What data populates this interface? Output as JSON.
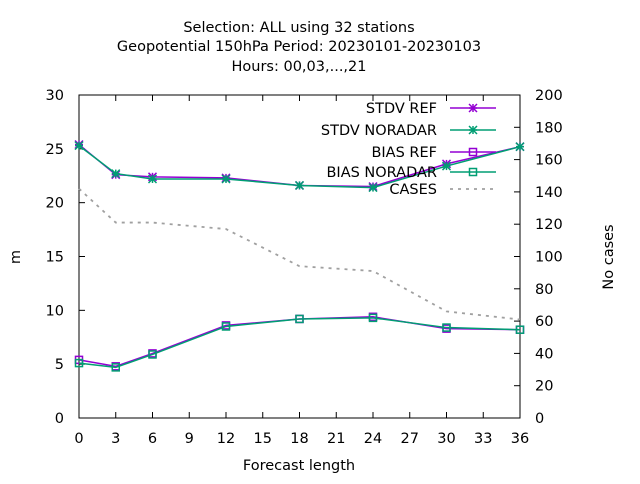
{
  "colors": {
    "stdv_ref": "#9400d3",
    "stdv_noradar": "#009e73",
    "bias_ref": "#9400d3",
    "bias_noradar": "#009e73",
    "cases": "#a0a0a0"
  },
  "chart_data": {
    "type": "line",
    "title": [
      "Selection: ALL using    32 stations",
      "Geopotential 150hPa   Period: 20230101-20230103",
      "Hours:  00,03,...,21"
    ],
    "xlabel": "Forecast length",
    "ylabel": "m",
    "y2label": "No cases",
    "xlim": [
      0,
      36
    ],
    "ylim": [
      0,
      30
    ],
    "y2lim": [
      0,
      200
    ],
    "xticks": [
      0,
      3,
      6,
      9,
      12,
      15,
      18,
      21,
      24,
      27,
      30,
      33,
      36
    ],
    "yticks": [
      0,
      5,
      10,
      15,
      20,
      25,
      30
    ],
    "y2ticks": [
      0,
      20,
      40,
      60,
      80,
      100,
      120,
      140,
      160,
      180,
      200
    ],
    "grid": false,
    "legend_position": "top-right",
    "x": [
      0,
      3,
      6,
      12,
      18,
      24,
      30,
      36
    ],
    "series": [
      {
        "name": "STDV REF",
        "axis": "y",
        "marker": "star",
        "values": [
          25.4,
          22.6,
          22.4,
          22.3,
          21.6,
          21.5,
          23.6,
          25.2
        ]
      },
      {
        "name": "STDV NORADAR",
        "axis": "y",
        "marker": "star",
        "values": [
          25.3,
          22.7,
          22.2,
          22.2,
          21.6,
          21.4,
          23.4,
          25.2
        ]
      },
      {
        "name": "BIAS REF",
        "axis": "y",
        "marker": "square",
        "values": [
          5.4,
          4.8,
          6.0,
          8.6,
          9.2,
          9.4,
          8.3,
          8.2
        ]
      },
      {
        "name": "BIAS NORADAR",
        "axis": "y",
        "marker": "square",
        "values": [
          5.1,
          4.7,
          5.9,
          8.5,
          9.2,
          9.3,
          8.4,
          8.2
        ]
      },
      {
        "name": "CASES",
        "axis": "y2",
        "marker": "none",
        "dashed": true,
        "values": [
          142,
          121,
          121,
          117,
          94,
          91,
          66,
          61
        ]
      }
    ]
  }
}
